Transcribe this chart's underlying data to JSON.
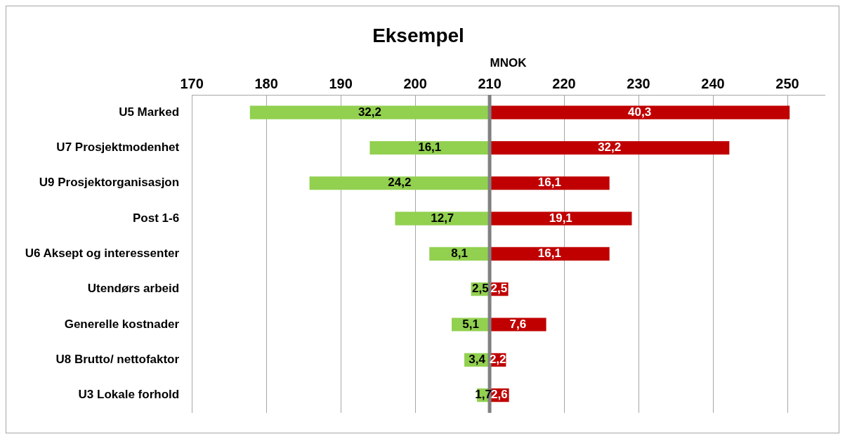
{
  "chart_data": {
    "type": "bar",
    "title": "Eksempel",
    "xlabel": "MNOK",
    "orientation": "horizontal",
    "categories": [
      "U5 Marked",
      "U7 Prosjektmodenhet",
      "U9 Prosjektorganisasjon",
      "Post 1-6",
      "U6 Aksept og interessenter",
      "Utendørs arbeid",
      "Generelle kostnader",
      "U8 Brutto/ nettofaktor",
      "U3 Lokale forhold"
    ],
    "series": [
      {
        "color": "#92d050",
        "values": [
          32.2,
          16.1,
          24.2,
          12.7,
          8.1,
          2.5,
          5.1,
          3.4,
          1.7
        ],
        "base": [
          177.8,
          193.9,
          185.8,
          197.3,
          201.9,
          207.5,
          204.9,
          206.6,
          208.3
        ],
        "value_labels": [
          "32,2",
          "16,1",
          "24,2",
          "12,7",
          "8,1",
          "2,5",
          "5,1",
          "3,4",
          "1,7"
        ]
      },
      {
        "color": "#c00000",
        "values": [
          40.3,
          32.2,
          16.1,
          19.1,
          16.1,
          2.5,
          7.6,
          2.2,
          2.6
        ],
        "base": [
          210,
          210,
          210,
          210,
          210,
          210,
          210,
          210,
          210
        ],
        "value_labels": [
          "40,3",
          "32,2",
          "16,1",
          "19,1",
          "16,1",
          "2,5",
          "7,6",
          "2,2",
          "2,6"
        ]
      }
    ],
    "xlim": [
      170,
      255
    ],
    "xticks": [
      170,
      180,
      190,
      200,
      210,
      220,
      230,
      240,
      250
    ],
    "grid": "x",
    "legend": false,
    "ref_lines": [
      {
        "axis": "x",
        "value": 210,
        "color": "#808080"
      }
    ]
  }
}
